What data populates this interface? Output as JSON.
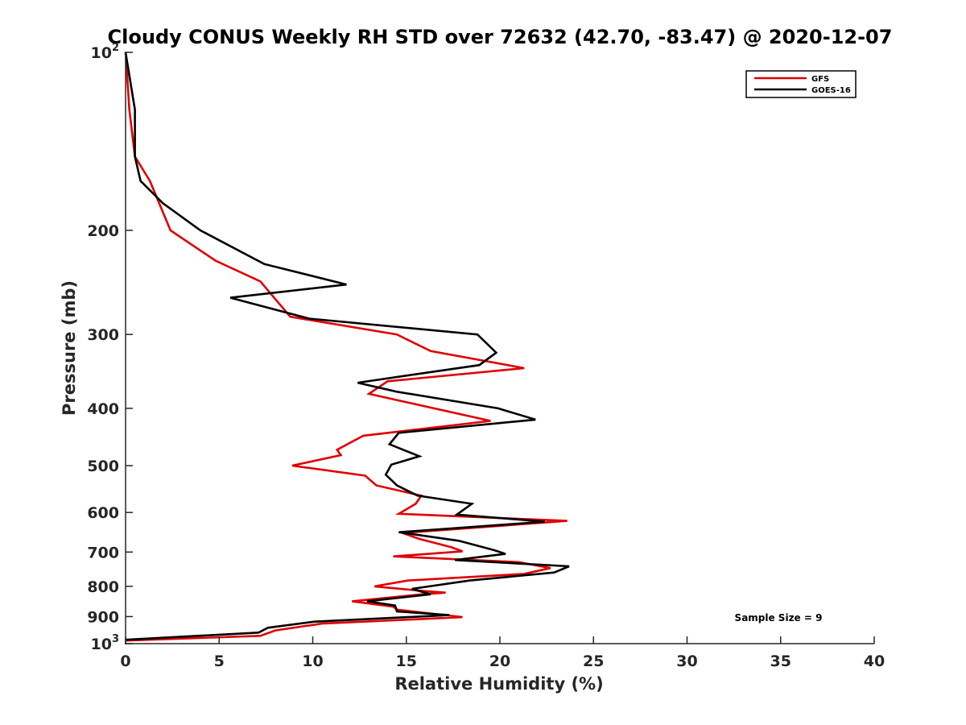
{
  "chart_data": {
    "type": "line",
    "title": "Cloudy CONUS Weekly RH STD over 72632 (42.70, -83.47) @ 2020-12-07",
    "xlabel": "Relative Humidity (%)",
    "ylabel": "Pressure (mb)",
    "xlim": [
      0,
      40
    ],
    "ylim": [
      100,
      1000
    ],
    "y_scale": "log",
    "y_reversed": true,
    "x_ticks": [
      "0",
      "5",
      "10",
      "15",
      "20",
      "25",
      "30",
      "35",
      "40"
    ],
    "y_ticks": [
      {
        "value": 100,
        "base": "10",
        "exp": "2"
      },
      {
        "value": 200,
        "label": "200"
      },
      {
        "value": 300,
        "label": "300"
      },
      {
        "value": 400,
        "label": "400"
      },
      {
        "value": 500,
        "label": "500"
      },
      {
        "value": 600,
        "label": "600"
      },
      {
        "value": 700,
        "label": "700"
      },
      {
        "value": 800,
        "label": "800"
      },
      {
        "value": 900,
        "label": "900"
      },
      {
        "value": 1000,
        "base": "10",
        "exp": "3"
      }
    ],
    "grid": false,
    "legend_position": "top-right",
    "annotation": "Sample Size = 9",
    "series": [
      {
        "name": "GFS",
        "color": "#e00000",
        "points": [
          [
            0.0,
            100
          ],
          [
            0.2,
            125
          ],
          [
            0.5,
            150
          ],
          [
            1.3,
            165
          ],
          [
            2.4,
            200
          ],
          [
            4.8,
            225
          ],
          [
            7.2,
            244
          ],
          [
            8.8,
            280
          ],
          [
            14.5,
            300
          ],
          [
            16.3,
            320
          ],
          [
            21.3,
            342
          ],
          [
            14.0,
            360
          ],
          [
            13.0,
            378
          ],
          [
            19.5,
            420
          ],
          [
            12.7,
            445
          ],
          [
            11.3,
            470
          ],
          [
            11.5,
            480
          ],
          [
            8.9,
            500
          ],
          [
            12.8,
            520
          ],
          [
            13.4,
            540
          ],
          [
            15.8,
            562
          ],
          [
            15.5,
            580
          ],
          [
            14.6,
            603
          ],
          [
            23.6,
            620
          ],
          [
            14.8,
            650
          ],
          [
            15.7,
            665
          ],
          [
            17.4,
            687
          ],
          [
            18.0,
            698
          ],
          [
            14.3,
            712
          ],
          [
            21.0,
            728
          ],
          [
            22.7,
            745
          ],
          [
            21.3,
            762
          ],
          [
            15.1,
            782
          ],
          [
            13.3,
            800
          ],
          [
            15.8,
            814
          ],
          [
            17.1,
            820
          ],
          [
            15.7,
            826
          ],
          [
            12.1,
            848
          ],
          [
            14.3,
            866
          ],
          [
            14.5,
            876
          ],
          [
            18.0,
            902
          ],
          [
            10.5,
            925
          ],
          [
            8.0,
            950
          ],
          [
            7.2,
            970
          ],
          [
            0.0,
            988
          ]
        ]
      },
      {
        "name": "GOES-16",
        "color": "#000000",
        "points": [
          [
            0.0,
            100
          ],
          [
            0.5,
            125
          ],
          [
            0.5,
            150
          ],
          [
            0.8,
            165
          ],
          [
            2.0,
            180
          ],
          [
            4.0,
            200
          ],
          [
            7.4,
            228
          ],
          [
            11.8,
            247
          ],
          [
            5.6,
            260
          ],
          [
            9.8,
            282
          ],
          [
            18.8,
            300
          ],
          [
            19.8,
            322
          ],
          [
            18.9,
            338
          ],
          [
            12.4,
            362
          ],
          [
            14.5,
            375
          ],
          [
            19.9,
            400
          ],
          [
            21.9,
            418
          ],
          [
            14.6,
            440
          ],
          [
            14.1,
            460
          ],
          [
            15.7,
            482
          ],
          [
            14.2,
            498
          ],
          [
            13.9,
            518
          ],
          [
            14.5,
            540
          ],
          [
            15.6,
            562
          ],
          [
            18.5,
            580
          ],
          [
            17.7,
            605
          ],
          [
            22.4,
            622
          ],
          [
            14.6,
            648
          ],
          [
            17.8,
            670
          ],
          [
            19.7,
            695
          ],
          [
            20.3,
            705
          ],
          [
            17.6,
            722
          ],
          [
            23.7,
            740
          ],
          [
            22.9,
            758
          ],
          [
            18.4,
            782
          ],
          [
            15.3,
            808
          ],
          [
            16.3,
            825
          ],
          [
            12.9,
            848
          ],
          [
            14.4,
            862
          ],
          [
            14.5,
            882
          ],
          [
            17.3,
            895
          ],
          [
            10.1,
            918
          ],
          [
            7.6,
            940
          ],
          [
            7.1,
            958
          ],
          [
            0.0,
            985
          ]
        ]
      }
    ]
  }
}
